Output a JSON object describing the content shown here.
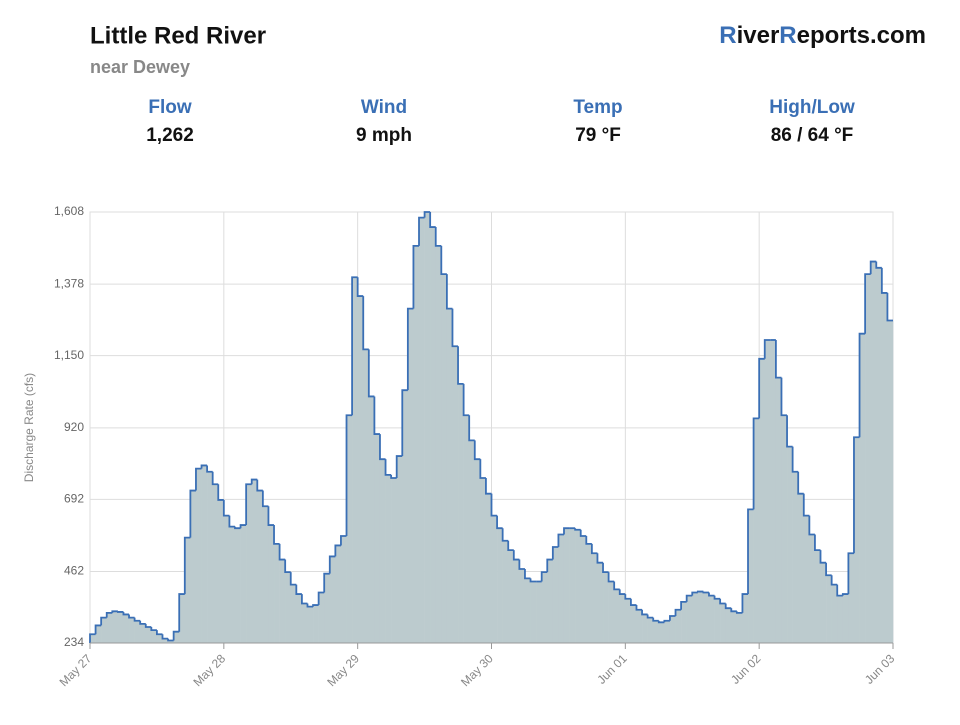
{
  "header": {
    "title": "Little Red River",
    "subtitle": "near Dewey",
    "brand": [
      "R",
      "iver",
      "R",
      "eports.com"
    ]
  },
  "stats": [
    {
      "label": "Flow",
      "value": "1,262"
    },
    {
      "label": "Wind",
      "value": "9 mph"
    },
    {
      "label": "Temp",
      "value": "79 °F"
    },
    {
      "label": "High/Low",
      "value": "86 / 64 °F"
    }
  ],
  "chart_data": {
    "type": "step-area",
    "y_label": "Discharge Rate (cfs)",
    "color": "#3a6fb5",
    "fill": "#bccbce",
    "grid": true,
    "xlim": [
      0,
      144
    ],
    "xticks": [
      {
        "value": 0,
        "label": "May 27"
      },
      {
        "value": 24,
        "label": "May 28"
      },
      {
        "value": 48,
        "label": "May 29"
      },
      {
        "value": 72,
        "label": "May 30"
      },
      {
        "value": 96,
        "label": "Jun 01"
      },
      {
        "value": 120,
        "label": "Jun 02"
      },
      {
        "value": 144,
        "label": "Jun 03"
      }
    ],
    "ylim": [
      234,
      1608
    ],
    "yticks": [
      234,
      462,
      692,
      920,
      {
        "value": 1150,
        "label": "1,150"
      },
      {
        "value": 1378,
        "label": "1,378"
      },
      {
        "value": 1608,
        "label": "1,608"
      }
    ],
    "values": [
      262,
      290,
      315,
      330,
      335,
      333,
      325,
      315,
      305,
      295,
      285,
      275,
      262,
      248,
      242,
      270,
      390,
      570,
      720,
      790,
      800,
      780,
      740,
      690,
      640,
      605,
      600,
      610,
      740,
      755,
      720,
      670,
      610,
      550,
      500,
      460,
      420,
      390,
      360,
      350,
      355,
      395,
      455,
      510,
      545,
      575,
      960,
      1400,
      1340,
      1170,
      1020,
      900,
      820,
      770,
      760,
      830,
      1040,
      1300,
      1500,
      1590,
      1608,
      1560,
      1500,
      1410,
      1300,
      1180,
      1060,
      960,
      880,
      820,
      760,
      710,
      640,
      600,
      560,
      530,
      500,
      470,
      440,
      430,
      430,
      460,
      500,
      540,
      580,
      600,
      600,
      595,
      575,
      550,
      520,
      490,
      460,
      430,
      405,
      390,
      375,
      355,
      340,
      325,
      315,
      305,
      300,
      305,
      320,
      340,
      365,
      385,
      395,
      398,
      395,
      385,
      375,
      360,
      345,
      335,
      330,
      390,
      660,
      950,
      1140,
      1200,
      1200,
      1080,
      960,
      860,
      780,
      710,
      640,
      580,
      530,
      490,
      450,
      420,
      385,
      390,
      520,
      890,
      1220,
      1410,
      1450,
      1430,
      1350,
      1262
    ]
  }
}
